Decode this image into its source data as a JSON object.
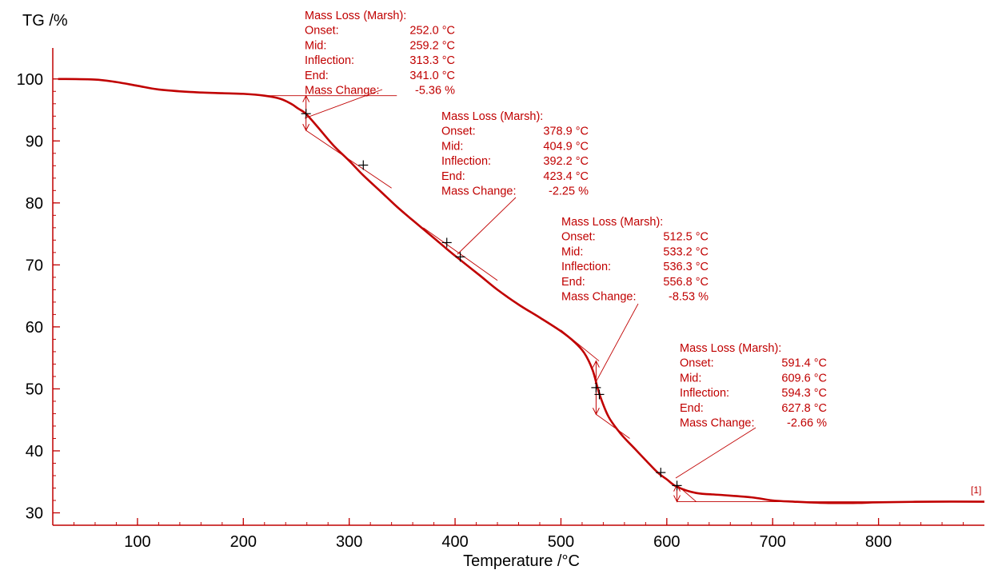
{
  "chart_data": {
    "type": "line",
    "title": "",
    "ylabel": "TG /%",
    "xlabel": "Temperature /°C",
    "xlim": [
      20,
      900
    ],
    "ylim": [
      28,
      105
    ],
    "x_ticks": [
      100,
      200,
      300,
      400,
      500,
      600,
      700,
      800
    ],
    "y_ticks": [
      30,
      40,
      50,
      60,
      70,
      80,
      90,
      100
    ],
    "grid": false,
    "series_marker": "[1]",
    "colors": {
      "curve": "#c00000",
      "annotation": "#c00000",
      "marker": "#000000",
      "axis": "#c00000",
      "text": "#000000"
    },
    "series": [
      {
        "x": [
          25,
          60,
          80,
          100,
          120,
          150,
          180,
          200,
          220,
          235,
          245,
          252,
          259,
          270,
          285,
          300,
          313,
          330,
          345,
          360,
          378.9,
          392,
          404.9,
          423.4,
          440,
          460,
          480,
          500,
          512.5,
          522,
          530,
          536.3,
          545,
          556.8,
          570,
          580,
          591.4,
          600,
          609.6,
          627.8,
          650,
          680,
          700,
          720,
          750,
          780,
          800,
          850,
          900
        ],
        "y": [
          100,
          99.9,
          99.5,
          98.9,
          98.3,
          97.9,
          97.7,
          97.6,
          97.3,
          96.8,
          96.0,
          95.2,
          94.4,
          92.3,
          89.3,
          86.8,
          84.5,
          81.8,
          79.4,
          77.2,
          74.5,
          72.6,
          70.8,
          68.3,
          66.0,
          63.6,
          61.5,
          59.3,
          57.6,
          55.8,
          53.0,
          49.2,
          45.5,
          42.7,
          40.3,
          38.5,
          36.5,
          35.4,
          34.2,
          33.2,
          32.9,
          32.5,
          32.0,
          31.8,
          31.6,
          31.6,
          31.7,
          31.8,
          31.8
        ]
      }
    ],
    "markers": [
      {
        "x": 259.2,
        "y": 94.4
      },
      {
        "x": 313.3,
        "y": 86.1
      },
      {
        "x": 392.2,
        "y": 73.6
      },
      {
        "x": 404.9,
        "y": 71.3
      },
      {
        "x": 533.2,
        "y": 50.2
      },
      {
        "x": 536.3,
        "y": 49.1
      },
      {
        "x": 594.3,
        "y": 36.5
      },
      {
        "x": 609.6,
        "y": 34.4
      }
    ],
    "annotations": [
      {
        "title": "Mass Loss (Marsh):",
        "rows": [
          {
            "label": "Onset:",
            "value": "252.0 °C"
          },
          {
            "label": "Mid:",
            "value": "259.2 °C"
          },
          {
            "label": "Inflection:",
            "value": "313.3 °C"
          },
          {
            "label": "End:",
            "value": "341.0 °C"
          },
          {
            "label": "Mass Change:",
            "value": "-5.36 %"
          }
        ],
        "pointer": {
          "x": 259.2,
          "y": 94.4
        },
        "step": {
          "x": 259.2,
          "y_top": 97.3,
          "y_bottom": 91.7
        },
        "tangents": [
          {
            "x1": 220,
            "y1": 97.3,
            "x2": 345,
            "y2": 97.3
          },
          {
            "x1": 259.2,
            "y1": 91.7,
            "x2": 340,
            "y2": 82.4
          }
        ]
      },
      {
        "title": "Mass Loss (Marsh):",
        "rows": [
          {
            "label": "Onset:",
            "value": "378.9 °C"
          },
          {
            "label": "Mid:",
            "value": "404.9 °C"
          },
          {
            "label": "Inflection:",
            "value": "392.2 °C"
          },
          {
            "label": "End:",
            "value": "423.4 °C"
          },
          {
            "label": "Mass Change:",
            "value": "-2.25 %"
          }
        ],
        "pointer": {
          "x": 404.9,
          "y": 71.3
        },
        "step": null,
        "tangents": [
          {
            "x1": 370,
            "y1": 76.0,
            "x2": 440,
            "y2": 67.5
          }
        ]
      },
      {
        "title": "Mass Loss (Marsh):",
        "rows": [
          {
            "label": "Onset:",
            "value": "512.5 °C"
          },
          {
            "label": "Mid:",
            "value": "533.2 °C"
          },
          {
            "label": "Inflection:",
            "value": "536.3 °C"
          },
          {
            "label": "End:",
            "value": "556.8 °C"
          },
          {
            "label": "Mass Change:",
            "value": "-8.53 %"
          }
        ],
        "pointer": {
          "x": 533.2,
          "y": 50.2
        },
        "step": {
          "x": 533.2,
          "y_top": 54.5,
          "y_bottom": 45.9
        },
        "tangents": [
          {
            "x1": 500,
            "y1": 59.5,
            "x2": 536,
            "y2": 54.5
          },
          {
            "x1": 533.2,
            "y1": 45.9,
            "x2": 565,
            "y2": 42.0
          }
        ]
      },
      {
        "title": "Mass Loss (Marsh):",
        "rows": [
          {
            "label": "Onset:",
            "value": "591.4 °C"
          },
          {
            "label": "Mid:",
            "value": "609.6 °C"
          },
          {
            "label": "Inflection:",
            "value": "594.3 °C"
          },
          {
            "label": "End:",
            "value": "627.8 °C"
          },
          {
            "label": "Mass Change:",
            "value": "-2.66 %"
          }
        ],
        "pointer": {
          "x": 609.6,
          "y": 34.4
        },
        "step": {
          "x": 609.6,
          "y_top": 34.5,
          "y_bottom": 31.8
        },
        "tangents": [
          {
            "x1": 609.6,
            "y1": 31.8,
            "x2": 900,
            "y2": 31.8
          },
          {
            "x1": 609.6,
            "y1": 34.5,
            "x2": 627.8,
            "y2": 31.8
          }
        ]
      }
    ]
  }
}
